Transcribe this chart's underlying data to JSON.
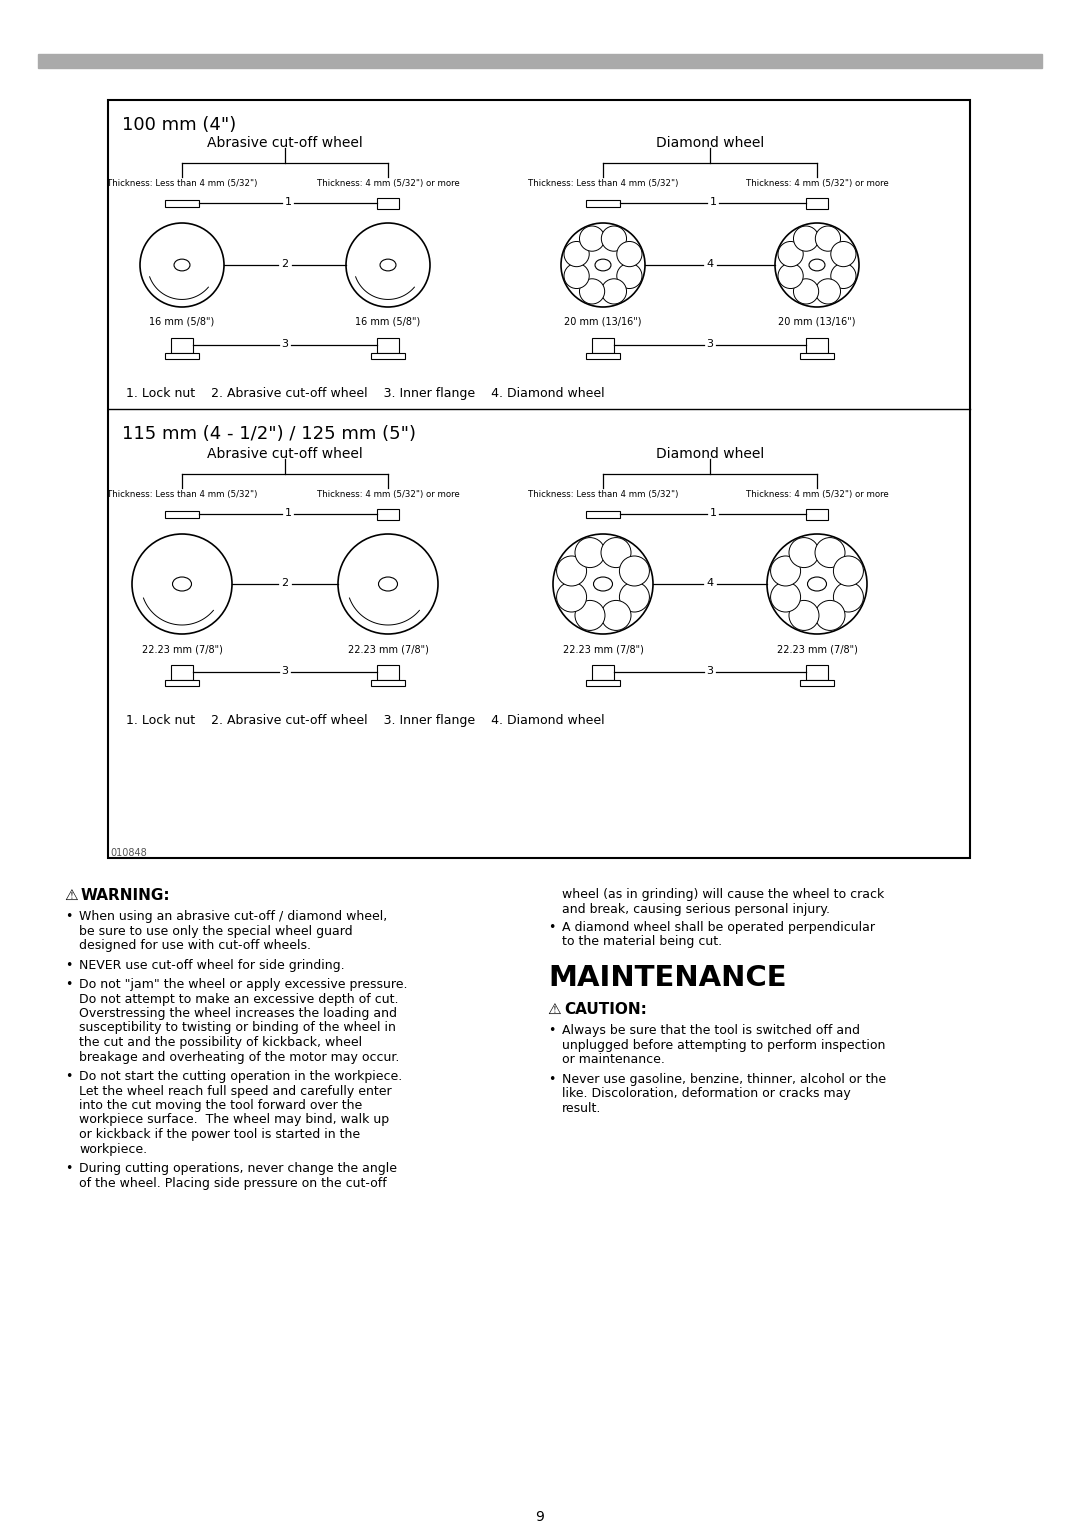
{
  "bg_color": "#ffffff",
  "header_bar_color": "#aaaaaa",
  "page_number": "9",
  "fig_code": "010848",
  "box_100mm_title": "100 mm (4\")",
  "box_115mm_title": "115 mm (4 - 1/2\") / 125 mm (5\")",
  "abrasive_label": "Abrasive cut-off wheel",
  "diamond_label": "Diamond wheel",
  "thickness_less": "Thickness: Less than 4 mm (5/32\")",
  "thickness_more": "Thickness: 4 mm (5/32\") or more",
  "wheel_100_abrasive_left_diam": "16 mm (5/8\")",
  "wheel_100_abrasive_right_diam": "16 mm (5/8\")",
  "wheel_100_diamond_left_diam": "20 mm (13/16\")",
  "wheel_100_diamond_right_diam": "20 mm (13/16\")",
  "wheel_115_abrasive_left_diam": "22.23 mm (7/8\")",
  "wheel_115_abrasive_right_diam": "22.23 mm (7/8\")",
  "wheel_115_diamond_left_diam": "22.23 mm (7/8\")",
  "wheel_115_diamond_right_diam": "22.23 mm (7/8\")",
  "warning_title": "WARNING:",
  "warning_bullets": [
    "When using an abrasive cut-off / diamond wheel, be sure to use only the special wheel guard designed for use with cut-off wheels.",
    "NEVER use cut-off wheel for side grinding.",
    "Do not \"jam\" the wheel or apply excessive pressure. Do not attempt to make an excessive depth of cut. Overstressing the wheel increases the loading and susceptibility to twisting or binding of the wheel in the cut and the possibility of kickback, wheel breakage and overheating of the motor may occur.",
    "Do not start the cutting operation in the workpiece. Let the wheel reach full speed and carefully enter into the cut moving the tool forward over the workpiece surface.  The wheel may bind, walk up or kickback if the power tool is started in the workpiece.",
    "During cutting operations, never change the angle of the wheel. Placing side pressure on the cut-off"
  ],
  "right_top_lines": [
    "wheel (as in grinding) will cause the wheel to crack",
    "and break, causing serious personal injury."
  ],
  "right_bullet2": "A diamond wheel shall be operated perpendicular to the material being cut.",
  "maintenance_title": "MAINTENANCE",
  "caution_title": "CAUTION:",
  "caution_bullets": [
    "Always be sure that the tool is switched off and unplugged before attempting to perform inspection or maintenance.",
    "Never use gasoline, benzine, thinner, alcohol or the like. Discoloration, deformation or cracks may result."
  ]
}
